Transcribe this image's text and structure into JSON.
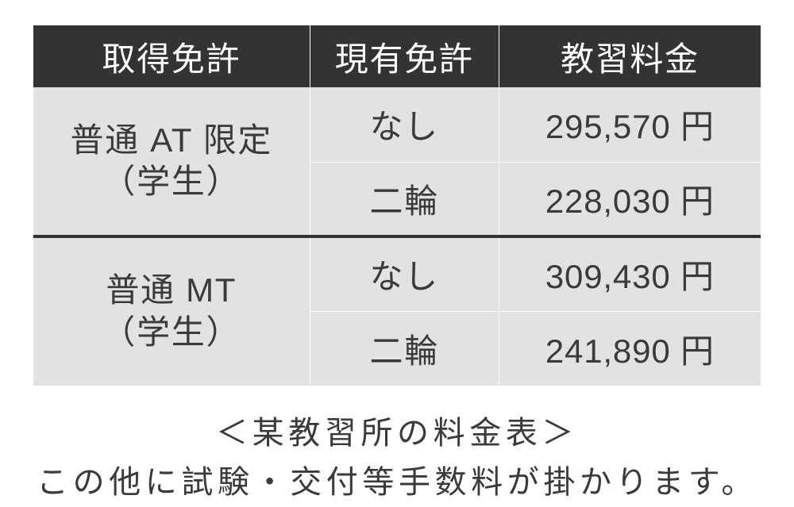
{
  "table": {
    "columns": [
      "取得免許",
      "現有免許",
      "教習料金"
    ],
    "col_widths_pct": [
      38,
      26,
      36
    ],
    "groups": [
      {
        "label_lines": [
          "普通 AT 限定",
          "（学生）"
        ],
        "rows": [
          {
            "current": "なし",
            "price": "295,570 円"
          },
          {
            "current": "二輪",
            "price": "228,030 円"
          }
        ]
      },
      {
        "label_lines": [
          "普通 MT",
          "（学生）"
        ],
        "rows": [
          {
            "current": "なし",
            "price": "309,430 円"
          },
          {
            "current": "二輪",
            "price": "241,890 円"
          }
        ]
      }
    ],
    "header_bg": "#333333",
    "header_fg": "#ffffff",
    "cell_bg": "#e2e2e2",
    "cell_fg": "#3a3a3a",
    "grid_color": "#ffffff",
    "group_divider_color": "#333333",
    "font_size_header": 42,
    "font_size_cell": 42
  },
  "caption": {
    "line1": "＜某教習所の料金表＞",
    "line2": "この他に試験・交付等手数料が掛かります。"
  }
}
